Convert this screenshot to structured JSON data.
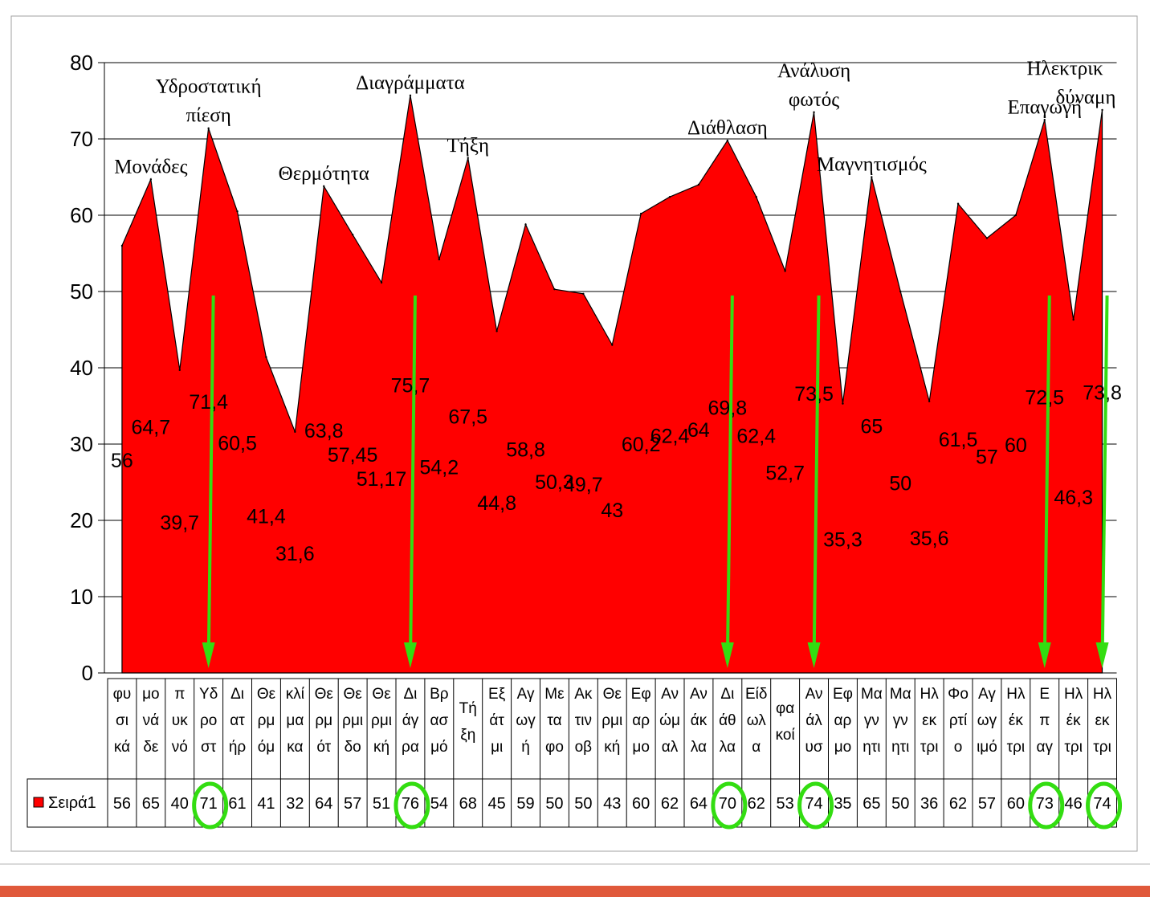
{
  "chart_data": {
    "type": "area",
    "series": [
      {
        "name": "Σειρά1",
        "values": [
          56,
          64.7,
          39.7,
          71.4,
          60.5,
          41.4,
          31.6,
          63.8,
          57.45,
          51.17,
          75.7,
          54.2,
          67.5,
          44.8,
          58.8,
          50.3,
          49.7,
          43,
          60.2,
          62.4,
          64,
          69.8,
          62.4,
          52.7,
          73.5,
          35.3,
          65,
          50,
          35.6,
          61.5,
          57,
          60,
          72.5,
          46.3,
          73.8
        ],
        "labels": [
          "56",
          "64,7",
          "39,7",
          "71,4",
          "60,5",
          "41,4",
          "31,6",
          "63,8",
          "57,45",
          "51,17",
          "75,7",
          "54,2",
          "67,5",
          "44,8",
          "58,8",
          "50,3",
          "49,7",
          "43",
          "60,2",
          "62,4",
          "64",
          "69,8",
          "62,4",
          "52,7",
          "73,5",
          "35,3",
          "65",
          "50",
          "35,6",
          "61,5",
          "57",
          "60",
          "72,5",
          "46,3",
          "73,8"
        ],
        "color": "#ff0000"
      }
    ],
    "categories": [
      [
        "φυ",
        "σι",
        "κά"
      ],
      [
        "μο",
        "νά",
        "δε"
      ],
      [
        "π",
        "υκ",
        "νό"
      ],
      [
        "Υδ",
        "ρο",
        "στ"
      ],
      [
        "Δι",
        "ατ",
        "ήρ"
      ],
      [
        "Θε",
        "ρμ",
        "όμ"
      ],
      [
        "κλί",
        "μα",
        "κα"
      ],
      [
        "Θε",
        "ρμ",
        "ότ"
      ],
      [
        "Θε",
        "ρμι",
        "δο"
      ],
      [
        "Θε",
        "ρμι",
        "κή"
      ],
      [
        "Δι",
        "άγ",
        "ρα"
      ],
      [
        "Βρ",
        "ασ",
        "μό"
      ],
      [
        "Τή",
        "ξη"
      ],
      [
        "Εξ",
        "άτ",
        "μι"
      ],
      [
        "Αγ",
        "ωγ",
        "ή"
      ],
      [
        "Με",
        "τα",
        "φο"
      ],
      [
        "Ακ",
        "τιν",
        "οβ"
      ],
      [
        "Θε",
        "ρμι",
        "κή"
      ],
      [
        "Εφ",
        "αρ",
        "μο"
      ],
      [
        "Αν",
        "ώμ",
        "αλ"
      ],
      [
        "Αν",
        "άκ",
        "λα"
      ],
      [
        "Δι",
        "άθ",
        "λα"
      ],
      [
        "Είδ",
        "ωλ",
        "α"
      ],
      [
        "φα",
        "κοί"
      ],
      [
        "Αν",
        "άλ",
        "υσ"
      ],
      [
        "Εφ",
        "αρ",
        "μο"
      ],
      [
        "Μα",
        "γν",
        "ητι"
      ],
      [
        "Μα",
        "γν",
        "ητι"
      ],
      [
        "Ηλ",
        "εκ",
        "τρι"
      ],
      [
        "Φο",
        "ρτί",
        "ο"
      ],
      [
        "Αγ",
        "ωγ",
        "ιμό"
      ],
      [
        "Ηλ",
        "έκ",
        "τρι"
      ],
      [
        "Ε",
        "π",
        "αγ"
      ],
      [
        "Ηλ",
        "έκ",
        "τρι"
      ],
      [
        "Ηλ",
        "εκ",
        "τρι"
      ]
    ],
    "table_values": [
      "56",
      "65",
      "40",
      "71",
      "61",
      "41",
      "32",
      "64",
      "57",
      "51",
      "76",
      "54",
      "68",
      "45",
      "59",
      "50",
      "50",
      "43",
      "60",
      "62",
      "64",
      "70",
      "62",
      "53",
      "74",
      "35",
      "65",
      "50",
      "36",
      "62",
      "57",
      "60",
      "73",
      "46",
      "74"
    ],
    "ylim": [
      0,
      80
    ],
    "yticks": [
      0,
      10,
      20,
      30,
      40,
      50,
      60,
      70,
      80
    ],
    "grid": true,
    "legend": "data-table",
    "annotations": [
      {
        "lines": [
          "Μονάδες"
        ],
        "index": 1
      },
      {
        "lines": [
          "Υδροστατική",
          "πίεση"
        ],
        "index": 3
      },
      {
        "lines": [
          "Θερμότητα"
        ],
        "index": 7
      },
      {
        "lines": [
          "Διαγράμματα"
        ],
        "index": 10
      },
      {
        "lines": [
          "Τήξη"
        ],
        "index": 12
      },
      {
        "lines": [
          "Διάθλαση"
        ],
        "index": 21
      },
      {
        "lines": [
          "Ανάλυση",
          "φωτός"
        ],
        "index": 24
      },
      {
        "lines": [
          "Μαγνητισμός"
        ],
        "index": 26
      },
      {
        "lines": [
          "Επαγωγή"
        ],
        "index": 32
      },
      {
        "lines": [
          "Ηλεκτρικ",
          "δύναμη"
        ],
        "index": 34
      }
    ],
    "highlighted_indices": [
      3,
      10,
      21,
      24,
      32,
      34
    ],
    "highlight_color": "#33dd11"
  }
}
